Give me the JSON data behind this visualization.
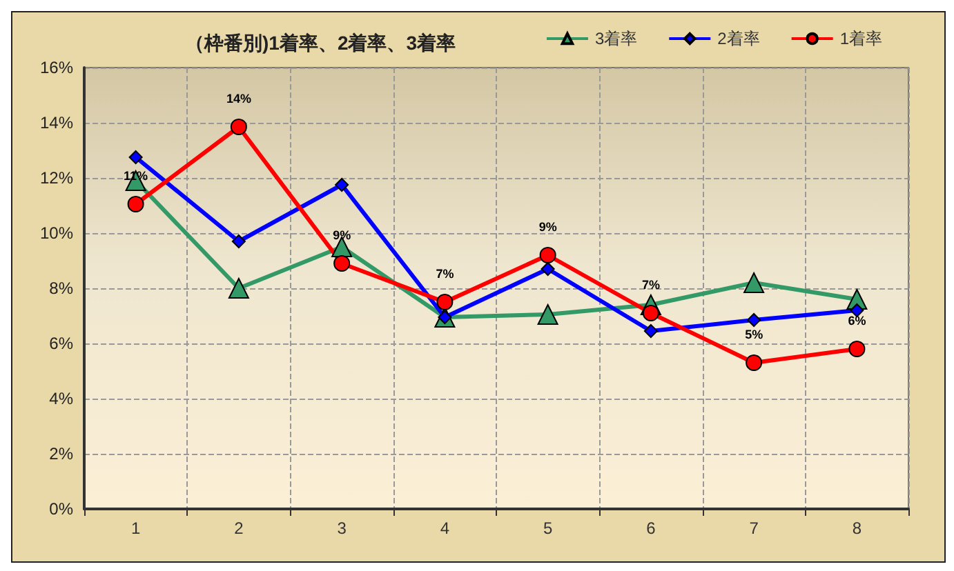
{
  "chart_data": {
    "type": "line",
    "title": "（枠番別)1着率、2着率、3着率",
    "categories": [
      "1",
      "2",
      "3",
      "4",
      "5",
      "6",
      "7",
      "8"
    ],
    "series": [
      {
        "name": "3着率",
        "color": "#339966",
        "marker": "triangle",
        "values": [
          11.9,
          8.0,
          9.5,
          6.95,
          7.05,
          7.4,
          8.2,
          7.6
        ]
      },
      {
        "name": "2着率",
        "color": "#0000ff",
        "marker": "diamond",
        "values": [
          12.75,
          9.7,
          11.75,
          6.95,
          8.7,
          6.45,
          6.85,
          7.2
        ]
      },
      {
        "name": "1着率",
        "color": "#ff0000",
        "marker": "circle",
        "values": [
          11.05,
          13.85,
          8.9,
          7.5,
          9.2,
          7.1,
          5.3,
          5.8
        ],
        "value_labels": [
          "11%",
          "14%",
          "9%",
          "7%",
          "9%",
          "7%",
          "5%",
          "6%"
        ]
      }
    ],
    "ylim": [
      0,
      16
    ],
    "yticks": [
      {
        "value": 0,
        "label": "0%"
      },
      {
        "value": 2,
        "label": "2%"
      },
      {
        "value": 4,
        "label": "4%"
      },
      {
        "value": 6,
        "label": "6%"
      },
      {
        "value": 8,
        "label": "8%"
      },
      {
        "value": 10,
        "label": "10%"
      },
      {
        "value": 12,
        "label": "12%"
      },
      {
        "value": 14,
        "label": "14%"
      },
      {
        "value": 16,
        "label": "16%"
      }
    ],
    "grid": true,
    "legend": "top right"
  }
}
